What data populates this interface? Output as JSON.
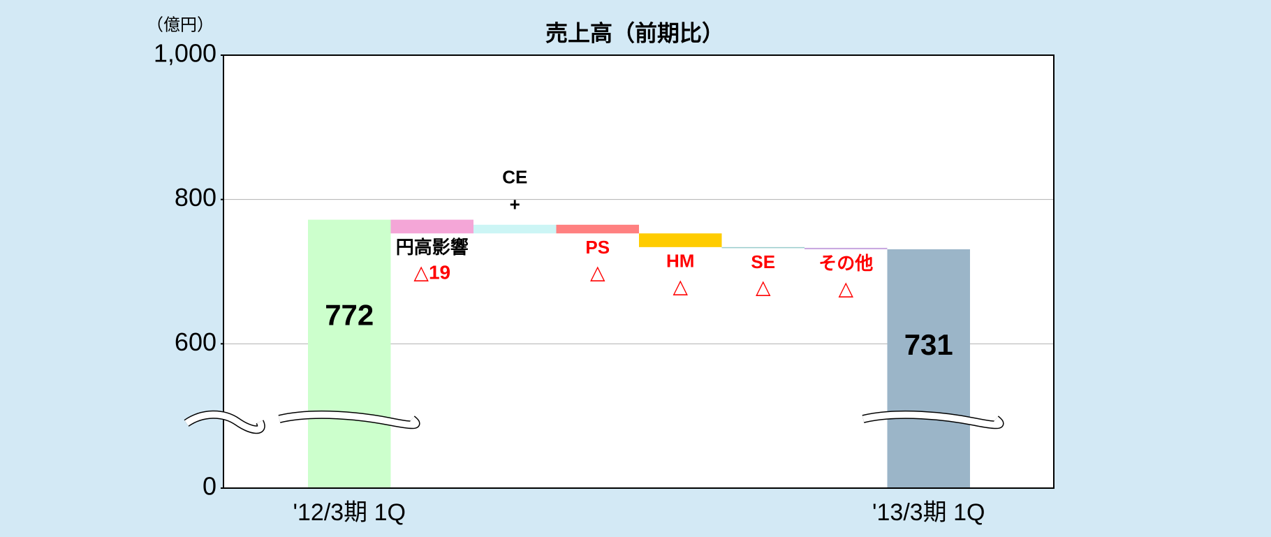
{
  "chart_data": {
    "type": "waterfall",
    "title": "売上高（前期比）",
    "unit_label": "（億円）",
    "categories": [
      "'12/3期 1Q",
      "円高影響",
      "CE",
      "PS",
      "HM",
      "SE",
      "その他",
      "'13/3期 1Q"
    ],
    "values": [
      772,
      -19,
      12,
      -12,
      -19,
      -1,
      -2,
      731
    ],
    "value_labels": [
      "772",
      "△19",
      "+",
      "△",
      "△",
      "△",
      "△",
      "731"
    ],
    "is_total": [
      true,
      false,
      false,
      false,
      false,
      false,
      false,
      true
    ],
    "colors": [
      "#ccffcc",
      "#f4a6d7",
      "#ccf5f5",
      "#ff8080",
      "#ffcc00",
      "#99cccc",
      "#c8a8e0",
      "#9bb5c8"
    ],
    "ylim": [
      0,
      1000
    ],
    "yticks": [
      0,
      600,
      800,
      {
        "value": 1000,
        "label": "1,000"
      }
    ],
    "broken_axis": true,
    "grid": true
  }
}
